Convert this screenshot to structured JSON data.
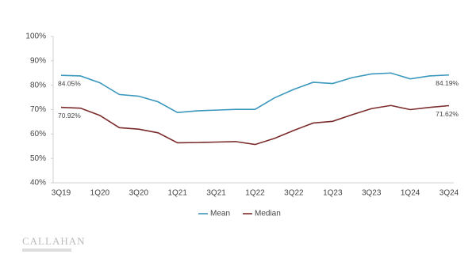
{
  "chart_data": {
    "type": "line",
    "categories": [
      "3Q19",
      null,
      "1Q20",
      null,
      "3Q20",
      null,
      "1Q21",
      null,
      "3Q21",
      null,
      "1Q22",
      null,
      "3Q22",
      null,
      "1Q23",
      null,
      "3Q23",
      null,
      "1Q24",
      null,
      "3Q24"
    ],
    "series": [
      {
        "name": "Mean",
        "color": "#3a97bd",
        "values": [
          84.05,
          83.8,
          81.0,
          76.2,
          75.5,
          73.2,
          68.8,
          69.5,
          69.8,
          70.1,
          70.1,
          74.8,
          78.3,
          81.2,
          80.7,
          83.1,
          84.6,
          85.0,
          82.6,
          83.8,
          84.19
        ],
        "value_labels": [
          "84.05%",
          null,
          null,
          null,
          null,
          null,
          null,
          null,
          null,
          null,
          null,
          null,
          null,
          null,
          null,
          null,
          null,
          null,
          null,
          null,
          "84.19%"
        ]
      },
      {
        "name": "Median",
        "color": "#7b2b2b",
        "values": [
          70.92,
          70.6,
          67.6,
          62.6,
          62.0,
          60.5,
          56.4,
          56.5,
          56.7,
          56.9,
          55.7,
          58.2,
          61.5,
          64.5,
          65.2,
          67.9,
          70.4,
          71.7,
          70.0,
          70.9,
          71.62
        ],
        "value_labels": [
          "70.92%",
          null,
          null,
          null,
          null,
          null,
          null,
          null,
          null,
          null,
          null,
          null,
          null,
          null,
          null,
          null,
          null,
          null,
          null,
          null,
          "71.62%"
        ]
      }
    ],
    "ylim": [
      40,
      100
    ],
    "yticks": [
      {
        "value": 40,
        "label": "40%"
      },
      {
        "value": 50,
        "label": "50%"
      },
      {
        "value": 60,
        "label": "60%"
      },
      {
        "value": 70,
        "label": "70%"
      },
      {
        "value": 80,
        "label": "80%"
      },
      {
        "value": 90,
        "label": "90%"
      },
      {
        "value": 100,
        "label": "100%"
      }
    ],
    "grid": false,
    "legend": "bottom",
    "logo": "CALLAHAN"
  }
}
